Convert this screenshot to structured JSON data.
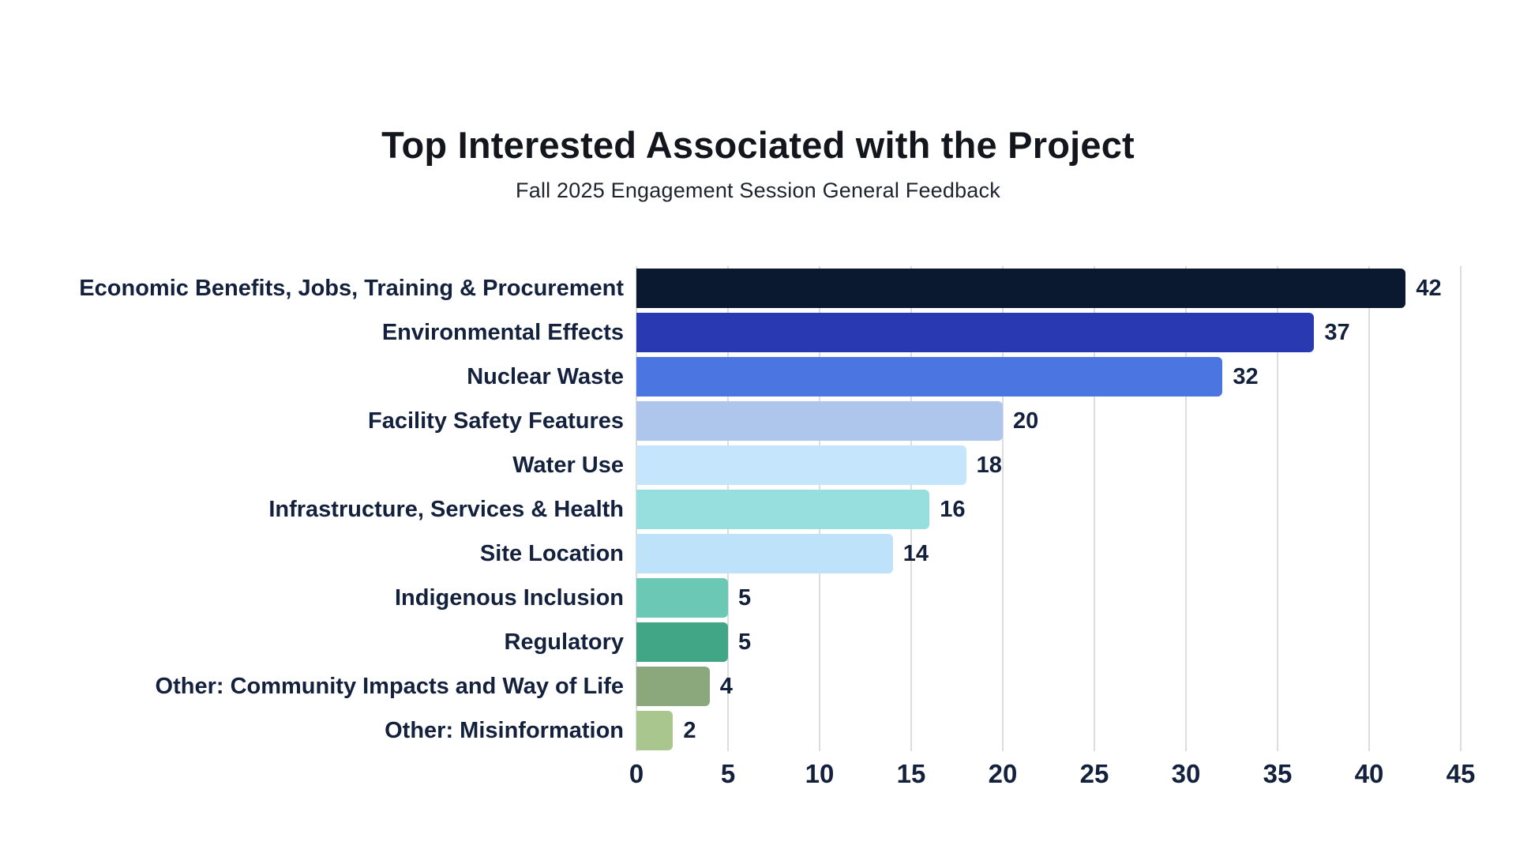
{
  "header": {
    "title": "Top Interested Associated with the Project",
    "subtitle": "Fall 2025 Engagement Session General Feedback"
  },
  "chart_data": {
    "type": "bar",
    "orientation": "horizontal",
    "title": "Top Interested Associated with the Project",
    "subtitle": "Fall 2025 Engagement Session General Feedback",
    "categories": [
      "Economic Benefits, Jobs, Training & Procurement",
      "Environmental Effects",
      "Nuclear Waste",
      "Facility Safety Features",
      "Water Use",
      "Infrastructure, Services & Health",
      "Site Location",
      "Indigenous Inclusion",
      "Regulatory",
      "Other: Community Impacts and Way of Life",
      "Other: Misinformation"
    ],
    "values": [
      42,
      37,
      32,
      20,
      18,
      16,
      14,
      5,
      5,
      4,
      2
    ],
    "bar_colors": [
      "#0A1830",
      "#2839B2",
      "#4B76E1",
      "#AEC6EC",
      "#C4E5FB",
      "#97DFDE",
      "#BEE2F9",
      "#6BC8B4",
      "#41A685",
      "#8AA87C",
      "#A8C68E"
    ],
    "value_labels_shown": true,
    "xlabel": "",
    "ylabel": "",
    "xlim": [
      0,
      45
    ],
    "x_ticks": [
      0,
      5,
      10,
      15,
      20,
      25,
      30,
      35,
      40,
      45
    ],
    "grid": "vertical",
    "grid_color": "#DCDDDF",
    "text_color": "#14213D",
    "background": "#FFFFFF",
    "legend": "none"
  }
}
